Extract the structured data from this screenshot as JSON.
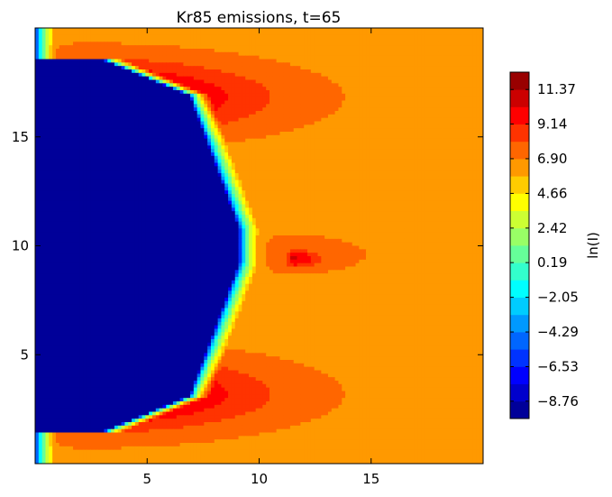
{
  "chart_data": {
    "type": "heatmap",
    "title": "Kr85 emissions, t=65",
    "xlabel": "",
    "ylabel": "",
    "xlim": [
      0,
      20
    ],
    "ylim": [
      0,
      20
    ],
    "x_ticks": [
      5,
      10,
      15
    ],
    "y_ticks": [
      5,
      10,
      15
    ],
    "colorbar": {
      "label": "ln(I)",
      "range": [
        -9.88,
        12.49
      ],
      "ticks": [
        "−8.76",
        "−6.53",
        "−4.29",
        "−2.05",
        "0.19",
        "2.42",
        "4.66",
        "6.90",
        "9.14",
        "11.37"
      ],
      "tick_values": [
        -8.76,
        -6.53,
        -4.29,
        -2.05,
        0.19,
        2.42,
        4.66,
        6.9,
        9.14,
        11.37
      ],
      "colormap": "jet",
      "levels": 20
    },
    "field": {
      "background": 6.4,
      "front_points": [
        [
          0,
          1.4
        ],
        [
          3.1,
          1.5
        ],
        [
          6.9,
          3.1
        ],
        [
          9.1,
          9.2
        ],
        [
          9.1,
          10.8
        ],
        [
          6.9,
          16.9
        ],
        [
          3.1,
          18.5
        ],
        [
          0,
          18.6
        ]
      ],
      "front_width": 0.9,
      "front_low": -9.88,
      "sources": [
        {
          "x": 2.0,
          "y": 3.2,
          "peak": 12.3,
          "sx": 7.5,
          "sy": 1.6
        },
        {
          "x": 2.0,
          "y": 16.8,
          "peak": 12.3,
          "sx": 7.5,
          "sy": 1.6
        },
        {
          "x": 11.5,
          "y": 9.4,
          "peak": 10.4,
          "sx": 1.4,
          "sy": 0.45
        },
        {
          "x": 11.0,
          "y": 9.6,
          "peak": 7.6,
          "sx": 4.0,
          "sy": 1.0
        }
      ],
      "rows": 20,
      "cols": 20
    }
  },
  "colors": {
    "background": "#ffffff",
    "axes": "#000000"
  }
}
